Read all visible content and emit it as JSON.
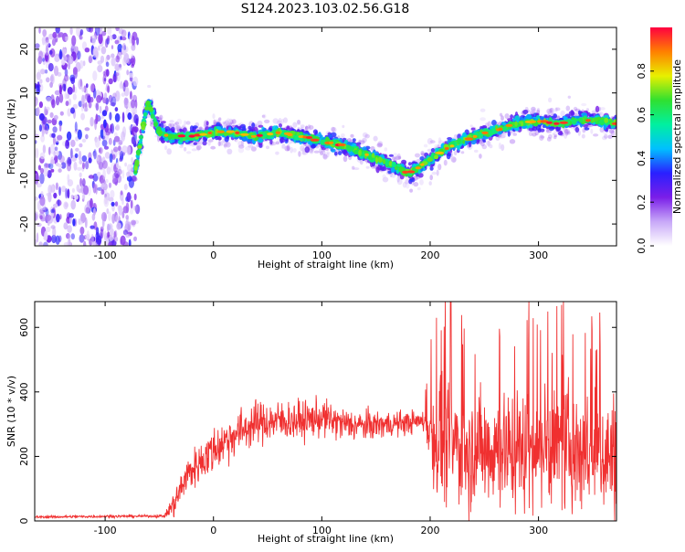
{
  "figure": {
    "title": "S124.2023.103.02.56.G18"
  },
  "chart_data": [
    {
      "type": "heatmap",
      "xlabel": "Height of straight line (km)",
      "ylabel": "Frequency (Hz)",
      "xlim": [
        -165,
        372
      ],
      "ylim": [
        -25,
        25
      ],
      "x_ticks": [
        -100,
        0,
        100,
        200,
        300
      ],
      "y_ticks": [
        -20,
        -10,
        0,
        10,
        20
      ],
      "grid": false,
      "colorbar": {
        "label": "Normalized spectral amplitude",
        "range": [
          0,
          1
        ],
        "ticks": [
          0.0,
          0.2,
          0.4,
          0.6,
          0.8
        ],
        "colors": [
          "#ffffff",
          "#c8a8f8",
          "#7a1ee8",
          "#2a20ff",
          "#00c0ff",
          "#00f0a0",
          "#30e030",
          "#e8f000",
          "#ff8000",
          "#ff0040"
        ]
      },
      "noise_region_x": [
        -165,
        -70
      ],
      "ridge": {
        "x": [
          -72,
          -68,
          -63,
          -60,
          -56,
          -50,
          -40,
          -20,
          0,
          20,
          40,
          60,
          80,
          100,
          120,
          140,
          160,
          170,
          180,
          190,
          200,
          220,
          240,
          260,
          280,
          300,
          320,
          340,
          360,
          372
        ],
        "y": [
          -8,
          -2,
          5,
          8,
          5,
          1,
          0,
          0,
          1,
          1,
          0,
          1,
          0,
          -1,
          -2,
          -4,
          -6,
          -7,
          -8.5,
          -7,
          -5,
          -2,
          0,
          1.5,
          3,
          3.5,
          3,
          4,
          3.5,
          3
        ]
      }
    },
    {
      "type": "line",
      "xlabel": "Height of straight line (km)",
      "ylabel": "SNR (10 * v/v)",
      "xlim": [
        -165,
        372
      ],
      "ylim": [
        0,
        680
      ],
      "x_ticks": [
        -100,
        0,
        100,
        200,
        300
      ],
      "y_ticks": [
        0,
        200,
        400,
        600
      ],
      "grid": false,
      "series_color": "#f03030",
      "trend": {
        "x": [
          -165,
          -100,
          -45,
          -35,
          -25,
          -10,
          0,
          20,
          40,
          60,
          80,
          100,
          120,
          140,
          160,
          180,
          195,
          205,
          220,
          240,
          260,
          280,
          300,
          320,
          340,
          360,
          372
        ],
        "y": [
          12,
          14,
          15,
          60,
          140,
          190,
          220,
          270,
          305,
          310,
          310,
          320,
          300,
          295,
          300,
          305,
          310,
          260,
          240,
          220,
          230,
          220,
          230,
          230,
          220,
          210,
          200
        ]
      },
      "noise_amplitude": {
        "x": [
          -165,
          -45,
          -35,
          0,
          100,
          195,
          205,
          372
        ],
        "y": [
          5,
          5,
          60,
          90,
          70,
          40,
          220,
          240
        ]
      },
      "peak_max": 680
    }
  ]
}
